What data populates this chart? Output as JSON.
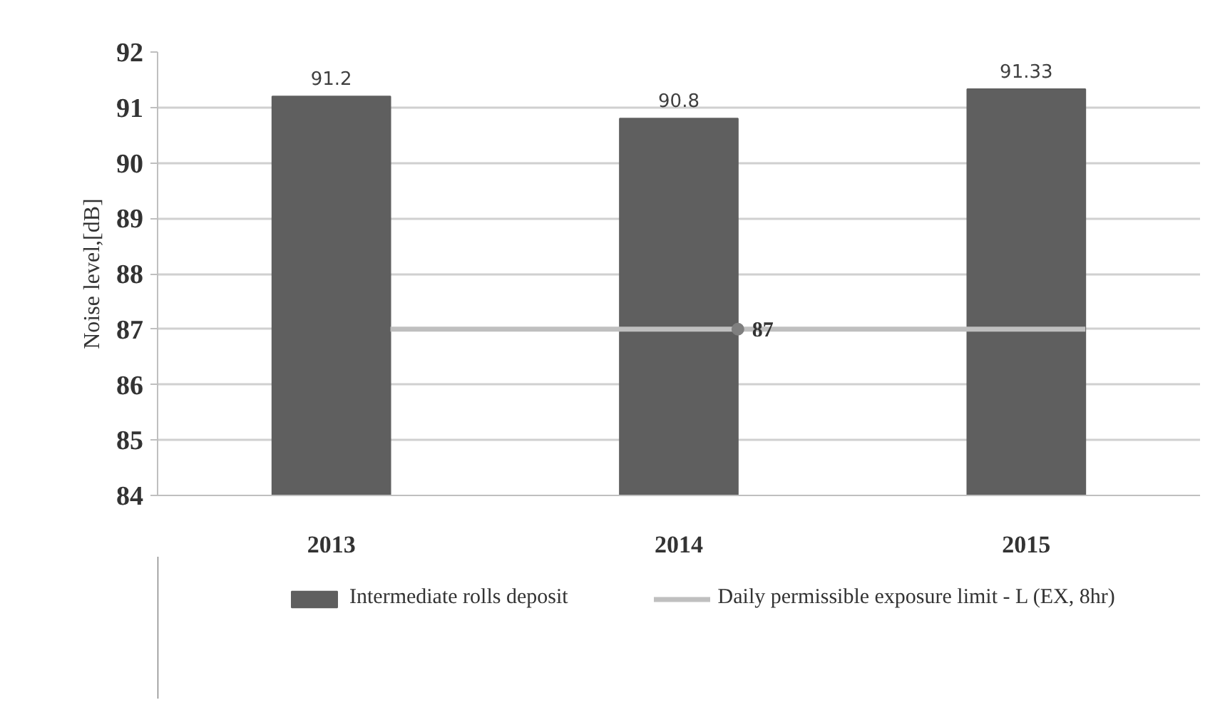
{
  "chart_data": {
    "type": "bar",
    "categories": [
      "2013",
      "2014",
      "2015"
    ],
    "ylabel": "Noise level,[dB]",
    "series": [
      {
        "name": "Intermediate rolls deposit",
        "color": "#5f5f5f",
        "values": [
          91.2,
          90.8,
          91.33
        ],
        "value_labels": [
          "91.2",
          "90.8",
          "91.33"
        ]
      },
      {
        "name": "Daily permissible exposure limit - L (EX, 8hr)",
        "type": "line",
        "color": "#bfbfbf",
        "values": [
          87,
          87,
          87
        ],
        "value_labels": [
          null,
          "87",
          null
        ]
      }
    ],
    "ylim": [
      84,
      92
    ],
    "yticks": [
      84,
      85,
      86,
      87,
      88,
      89,
      90,
      91,
      92
    ],
    "grid": "y",
    "legend": "bottom",
    "line_style": "solid"
  }
}
